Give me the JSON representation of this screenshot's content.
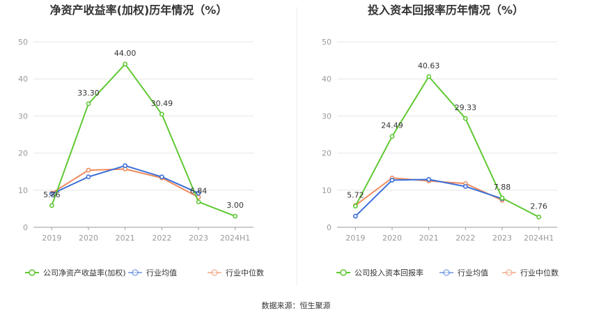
{
  "chart_data": [
    {
      "type": "line",
      "title": "净资产收益率(加权)历年情况（%）",
      "categories": [
        "2019",
        "2020",
        "2021",
        "2022",
        "2023",
        "2024H1"
      ],
      "ylim": [
        0,
        50
      ],
      "yticks": [
        0,
        10,
        20,
        30,
        40,
        50
      ],
      "series": [
        {
          "name": "公司净资产收益率(加权)",
          "color": "#5ec832",
          "values": [
            5.86,
            33.3,
            44.0,
            30.49,
            6.84,
            3.0
          ],
          "labels": [
            "5.86",
            "33.30",
            "44.00",
            "30.49",
            "6.84",
            "3.00"
          ]
        },
        {
          "name": "行业均值",
          "color": "#3a6fd8",
          "values": [
            9.0,
            13.6,
            16.6,
            13.6,
            9.2,
            null
          ]
        },
        {
          "name": "行业中位数",
          "color": "#ef8a5c",
          "values": [
            9.2,
            15.4,
            15.7,
            13.3,
            8.1,
            null
          ]
        }
      ]
    },
    {
      "type": "line",
      "title": "投入资本回报率历年情况（%）",
      "categories": [
        "2019",
        "2020",
        "2021",
        "2022",
        "2023",
        "2024H1"
      ],
      "ylim": [
        0,
        50
      ],
      "yticks": [
        0,
        10,
        20,
        30,
        40,
        50
      ],
      "series": [
        {
          "name": "公司投入资本回报率",
          "color": "#5ec832",
          "values": [
            5.72,
            24.49,
            40.63,
            29.33,
            7.88,
            2.76
          ],
          "labels": [
            "5.72",
            "24.49",
            "40.63",
            "29.33",
            "7.88",
            "2.76"
          ]
        },
        {
          "name": "行业均值",
          "color": "#3a6fd8",
          "values": [
            3.0,
            12.7,
            12.9,
            11.0,
            7.7,
            null
          ]
        },
        {
          "name": "行业中位数",
          "color": "#ef8a5c",
          "values": [
            5.9,
            13.3,
            12.5,
            11.8,
            7.3,
            null
          ]
        }
      ]
    }
  ],
  "footer": {
    "source_label": "数据来源：恒生聚源"
  }
}
